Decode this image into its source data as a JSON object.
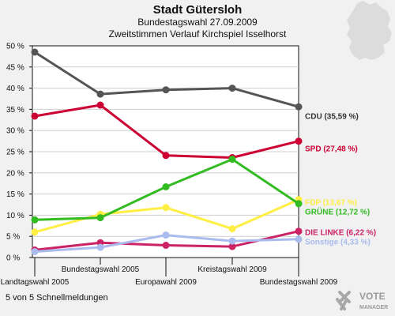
{
  "header": {
    "title": "Stadt Gütersloh",
    "subtitle1": "Bundestagswahl 27.09.2009",
    "subtitle2": "Zweitstimmen Verlauf Kirchspiel Isselhorst"
  },
  "footer": {
    "text": "5 von 5 Schnellmeldungen"
  },
  "logo": {
    "line1": "VOTE",
    "line2": "MANAGER",
    "icon": "vote-manager-x-logo"
  },
  "map": {
    "icon": "germany-map-silhouette",
    "color": "#dcdcdc"
  },
  "chart_data": {
    "type": "line",
    "title": "",
    "xlabel": "",
    "ylabel": "",
    "ylim": [
      0,
      50
    ],
    "yticks": [
      0,
      5,
      10,
      15,
      20,
      25,
      30,
      35,
      40,
      45,
      50
    ],
    "ytick_labels": [
      "0 %",
      "5 %",
      "10 %",
      "15 %",
      "20 %",
      "25 %",
      "30 %",
      "35 %",
      "40 %",
      "45 %",
      "50 %"
    ],
    "grid": true,
    "legend": "right",
    "categories": [
      "Landtagswahl 2005",
      "Bundestagswahl 2005",
      "Europawahl 2009",
      "Kreistagswahl 2009",
      "Bundestagswahl 2009"
    ],
    "series": [
      {
        "name": "CDU (35,59 %)",
        "color": "#555555",
        "values": [
          48.5,
          38.6,
          39.6,
          40.0,
          35.59
        ]
      },
      {
        "name": "SPD (27,48 %)",
        "color": "#cc0033",
        "values": [
          33.4,
          36.0,
          24.1,
          23.6,
          27.48
        ]
      },
      {
        "name": "FDP (13,67 %)",
        "color": "#ffee44",
        "values": [
          6.0,
          10.2,
          11.8,
          6.8,
          13.67
        ]
      },
      {
        "name": "GRÜNE (12,72 %)",
        "color": "#33bb22",
        "values": [
          8.9,
          9.4,
          16.7,
          23.2,
          12.72
        ]
      },
      {
        "name": "DIE LINKE (6,22 %)",
        "color": "#cc2266",
        "values": [
          1.8,
          3.5,
          2.9,
          2.6,
          6.22
        ]
      },
      {
        "name": "Sonstige (4,33 %)",
        "color": "#aabbee",
        "values": [
          1.4,
          2.4,
          5.3,
          3.9,
          4.33
        ]
      }
    ]
  }
}
